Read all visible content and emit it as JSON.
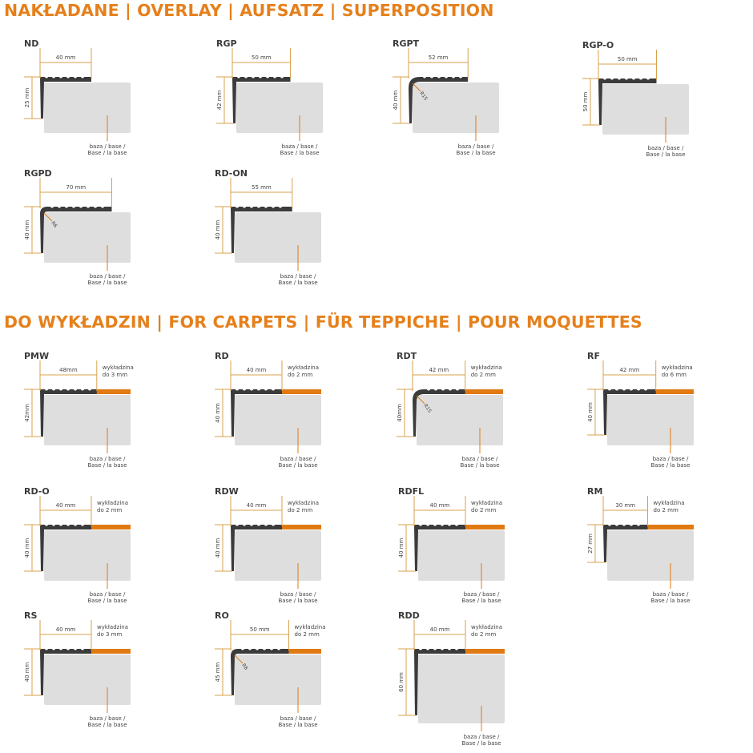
{
  "colors": {
    "accent": "#e5801c",
    "dimension": "#d9a24e",
    "profile": "#3b3b3b",
    "base": "#dedede",
    "carpet": "#e07a12"
  },
  "base_label": [
    "baza / base /",
    "Base / la base"
  ],
  "sections": [
    {
      "title": "NAKŁADANE | OVERLAY | AUFSATZ | SUPERPOSITION",
      "items": [
        {
          "name": "ND",
          "width": "40 mm",
          "height": "25 mm"
        },
        {
          "name": "RGP",
          "width": "50 mm",
          "height": "42 mm"
        },
        {
          "name": "RGPT",
          "width": "52 mm",
          "height": "40 mm",
          "radius": "R15"
        },
        {
          "name": "RGP-O",
          "width": "50 mm",
          "height": "50 mm"
        },
        {
          "name": "RGPD",
          "width": "70 mm",
          "height": "40 mm",
          "radius": "R6"
        },
        {
          "name": "RD-ON",
          "width": "55 mm",
          "height": "40 mm"
        }
      ]
    },
    {
      "title": "DO WYKŁADZIN | FOR CARPETS | FÜR TEPPICHE | POUR MOQUETTES",
      "items": [
        {
          "name": "PMW",
          "width": "48mm",
          "height": "42mm",
          "carpet": [
            "wykładzina",
            "do 3 mm"
          ]
        },
        {
          "name": "RD",
          "width": "40 mm",
          "height": "40 mm",
          "carpet": [
            "wykładzina",
            "do 2 mm"
          ]
        },
        {
          "name": "RDT",
          "width": "42 mm",
          "height": "40mm",
          "radius": "R15",
          "carpet": [
            "wykładzina",
            "do 2 mm"
          ]
        },
        {
          "name": "RF",
          "width": "42 mm",
          "height": "40 mm",
          "carpet": [
            "wykładzina",
            "do 6 mm"
          ]
        },
        {
          "name": "RD-O",
          "width": "40 mm",
          "height": "40 mm",
          "carpet": [
            "wykładzina",
            "do 2 mm"
          ]
        },
        {
          "name": "RDW",
          "width": "40 mm",
          "height": "40 mm",
          "carpet": [
            "wykładzina",
            "do 2 mm"
          ]
        },
        {
          "name": "RDFL",
          "width": "40 mm",
          "height": "40 mm",
          "carpet": [
            "wykładzina",
            "do 2 mm"
          ]
        },
        {
          "name": "RM",
          "width": "30 mm",
          "height": "27 mm",
          "carpet": [
            "wykładzina",
            "do 2 mm"
          ]
        },
        {
          "name": "RS",
          "width": "40 mm",
          "height": "40 mm",
          "carpet": [
            "wykładzina",
            "do 3 mm"
          ]
        },
        {
          "name": "RO",
          "width": "50 mm",
          "height": "45 mm",
          "radius": "R8",
          "carpet": [
            "wykładzina",
            "do 2 mm"
          ]
        },
        {
          "name": "RDD",
          "width": "40 mm",
          "height": "60 mm",
          "carpet": [
            "wykładzina",
            "do 2 mm"
          ]
        }
      ]
    }
  ]
}
